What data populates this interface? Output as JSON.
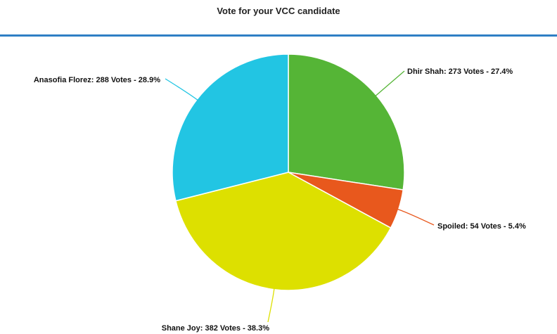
{
  "chart_data": {
    "type": "pie",
    "title": "Vote for your VCC candidate",
    "slices": [
      {
        "label": "Dhir Shah: 273 Votes - 27.4%",
        "name": "Dhir Shah",
        "value": 273,
        "percent": 27.4,
        "color": "#55b536"
      },
      {
        "label": "Spoiled: 54 Votes - 5.4%",
        "name": "Spoiled",
        "value": 54,
        "percent": 5.4,
        "color": "#e8581d"
      },
      {
        "label": "Shane Joy: 382 Votes - 38.3%",
        "name": "Shane Joy",
        "value": 382,
        "percent": 38.3,
        "color": "#dde000"
      },
      {
        "label": "Anasofia Florez: 288 Votes - 28.9%",
        "name": "Anasofia Florez",
        "value": 288,
        "percent": 28.9,
        "color": "#22c5e3"
      }
    ]
  },
  "header": {
    "divider_color": "#2f7fc5"
  }
}
